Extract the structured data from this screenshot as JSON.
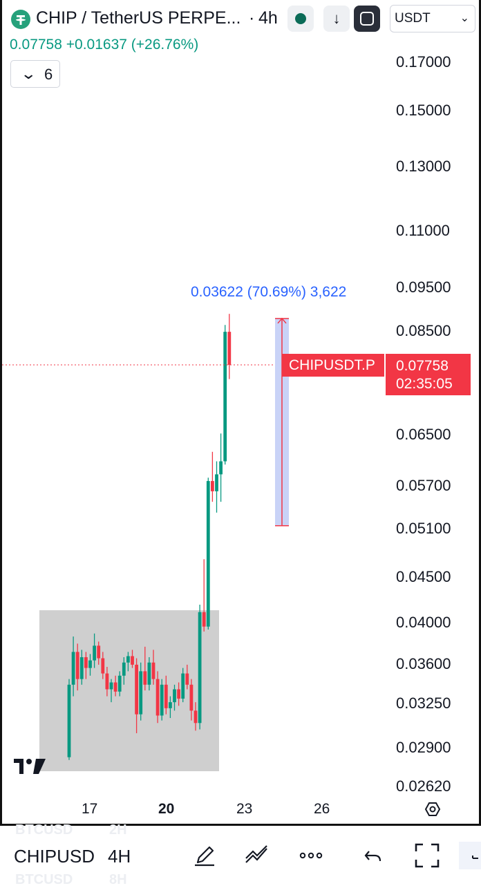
{
  "header": {
    "symbol_title": "CHIP / TetherUS PERPE...",
    "separator": "·",
    "interval": "4h",
    "currency_select": "USDT",
    "currency_chevron": "⌄",
    "down_arrow": "↓"
  },
  "quote": {
    "last": "0.07758",
    "change": "+0.01637",
    "change_pct": "(+26.76%)",
    "color_up": "#089981"
  },
  "indicators_button": {
    "chevron": "⌄",
    "count": "6"
  },
  "price_axis": {
    "labels": [
      "0.17000",
      "0.15000",
      "0.13000",
      "0.11000",
      "0.09500",
      "0.08500",
      "0.06500",
      "0.05700",
      "0.05100",
      "0.04500",
      "0.04000",
      "0.03600",
      "0.03250",
      "0.02900",
      "0.02620"
    ]
  },
  "time_axis": {
    "labels": [
      "17",
      "20",
      "23",
      "26"
    ],
    "bold_label": "20"
  },
  "last_price_badge": {
    "price": "0.07758",
    "countdown": "02:35:05",
    "symbol": "CHIPUSDT.P",
    "color": "#f23645"
  },
  "measure_tool": {
    "label": "0.03622 (70.69%) 3,622",
    "color": "#2962ff",
    "from_price": 0.05124,
    "to_price": 0.08746
  },
  "toolbar": {
    "symbol_tab": "CHIPUSD",
    "interval_tab": "4H",
    "ghost_symbol_above": "BTCUSD",
    "ghost_interval_above": "2H",
    "ghost_symbol_below": "BTCUSD",
    "ghost_interval_below": "8H"
  },
  "chart_data": {
    "type": "candlestick",
    "symbol": "CHIPUSDT.P",
    "interval": "4h",
    "x_ticks": [
      "17",
      "20",
      "23",
      "26"
    ],
    "y_ticks": [
      0.17,
      0.15,
      0.13,
      0.11,
      0.095,
      0.085,
      0.065,
      0.057,
      0.051,
      0.045,
      0.04,
      0.036,
      0.0325,
      0.029,
      0.0262
    ],
    "scale": "log",
    "ylim": [
      0.0258,
      0.18
    ],
    "last_price": 0.07758,
    "candles": [
      [
        0.0282,
        0.0345,
        0.028,
        0.034
      ],
      [
        0.034,
        0.0385,
        0.033,
        0.037
      ],
      [
        0.037,
        0.0378,
        0.0335,
        0.0345
      ],
      [
        0.0345,
        0.0372,
        0.034,
        0.0365
      ],
      [
        0.0365,
        0.037,
        0.0345,
        0.0355
      ],
      [
        0.0355,
        0.0368,
        0.0348,
        0.0362
      ],
      [
        0.0362,
        0.0388,
        0.0355,
        0.0376
      ],
      [
        0.0376,
        0.038,
        0.0358,
        0.0364
      ],
      [
        0.0364,
        0.037,
        0.0345,
        0.035
      ],
      [
        0.035,
        0.0356,
        0.033,
        0.0336
      ],
      [
        0.0336,
        0.0345,
        0.0325,
        0.0342
      ],
      [
        0.0342,
        0.0348,
        0.033,
        0.0334
      ],
      [
        0.0334,
        0.0352,
        0.033,
        0.0348
      ],
      [
        0.0348,
        0.0365,
        0.034,
        0.036
      ],
      [
        0.036,
        0.037,
        0.0352,
        0.0366
      ],
      [
        0.0366,
        0.0372,
        0.0355,
        0.0358
      ],
      [
        0.0358,
        0.0364,
        0.03,
        0.0315
      ],
      [
        0.0315,
        0.036,
        0.031,
        0.0352
      ],
      [
        0.0352,
        0.0375,
        0.0335,
        0.034
      ],
      [
        0.034,
        0.0365,
        0.0335,
        0.036
      ],
      [
        0.036,
        0.0372,
        0.034,
        0.0345
      ],
      [
        0.0345,
        0.0352,
        0.0308,
        0.0314
      ],
      [
        0.0314,
        0.0345,
        0.031,
        0.034
      ],
      [
        0.034,
        0.0348,
        0.0315,
        0.032
      ],
      [
        0.032,
        0.033,
        0.0312,
        0.0325
      ],
      [
        0.0325,
        0.034,
        0.0318,
        0.0336
      ],
      [
        0.0336,
        0.0342,
        0.0322,
        0.0328
      ],
      [
        0.0328,
        0.0355,
        0.0325,
        0.035
      ],
      [
        0.035,
        0.0358,
        0.0336,
        0.034
      ],
      [
        0.034,
        0.0345,
        0.031,
        0.0318
      ],
      [
        0.0318,
        0.0325,
        0.0302,
        0.0308
      ],
      [
        0.0308,
        0.0418,
        0.0303,
        0.041
      ],
      [
        0.041,
        0.047,
        0.039,
        0.0395
      ],
      [
        0.0395,
        0.058,
        0.0392,
        0.0575
      ],
      [
        0.0575,
        0.062,
        0.0545,
        0.056
      ],
      [
        0.056,
        0.0605,
        0.053,
        0.0585
      ],
      [
        0.0585,
        0.065,
        0.0545,
        0.0605
      ],
      [
        0.0605,
        0.086,
        0.06,
        0.0845
      ],
      [
        0.0845,
        0.0885,
        0.0748,
        0.0776
      ]
    ],
    "shaded_zone": {
      "x_from": 0,
      "x_to": 32,
      "y_from": 0.0272,
      "y_to": 0.0412
    }
  }
}
